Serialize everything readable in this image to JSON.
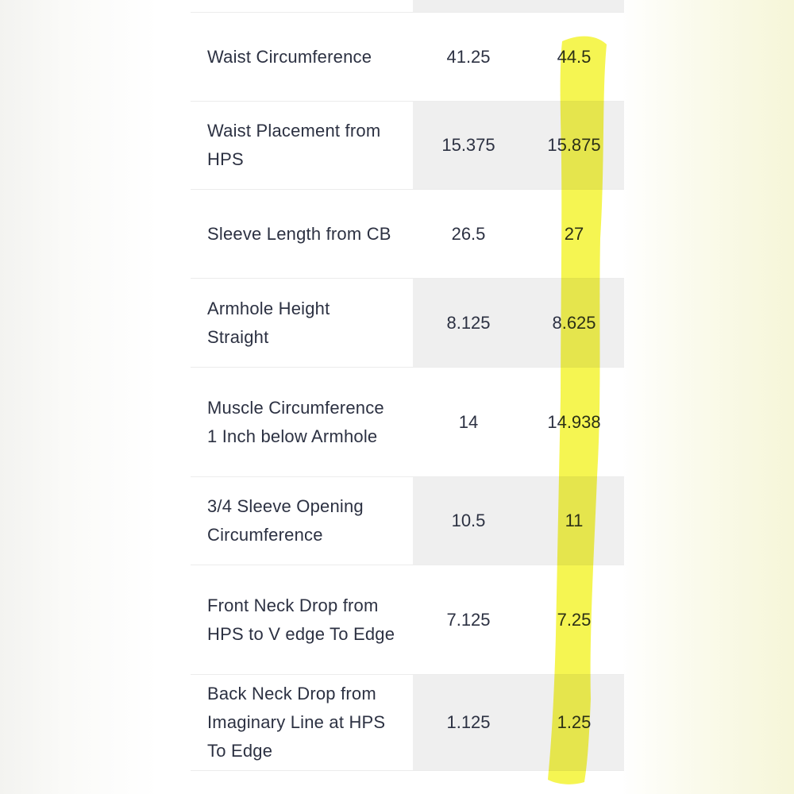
{
  "table": {
    "rows": [
      {
        "label": "Waist Circumference",
        "col1": "41.25",
        "col2": "44.5"
      },
      {
        "label": "Waist Placement from HPS",
        "col1": "15.375",
        "col2": "15.875"
      },
      {
        "label": "Sleeve Length from CB",
        "col1": "26.5",
        "col2": "27"
      },
      {
        "label": "Armhole Height Straight",
        "col1": "8.125",
        "col2": "8.625"
      },
      {
        "label": "Muscle Circumference 1 Inch below Armhole",
        "col1": "14",
        "col2": "14.938"
      },
      {
        "label": "3/4 Sleeve Opening Circumference",
        "col1": "10.5",
        "col2": "11"
      },
      {
        "label": "Front Neck Drop from HPS to V edge To Edge",
        "col1": "7.125",
        "col2": "7.25"
      },
      {
        "label": "Back Neck Drop from Imaginary Line at HPS To Edge",
        "col1": "1.125",
        "col2": "1.25"
      }
    ]
  },
  "colors": {
    "highlighter": "#f4f43a",
    "row_shade": "#efefef",
    "text": "#2c3142"
  }
}
